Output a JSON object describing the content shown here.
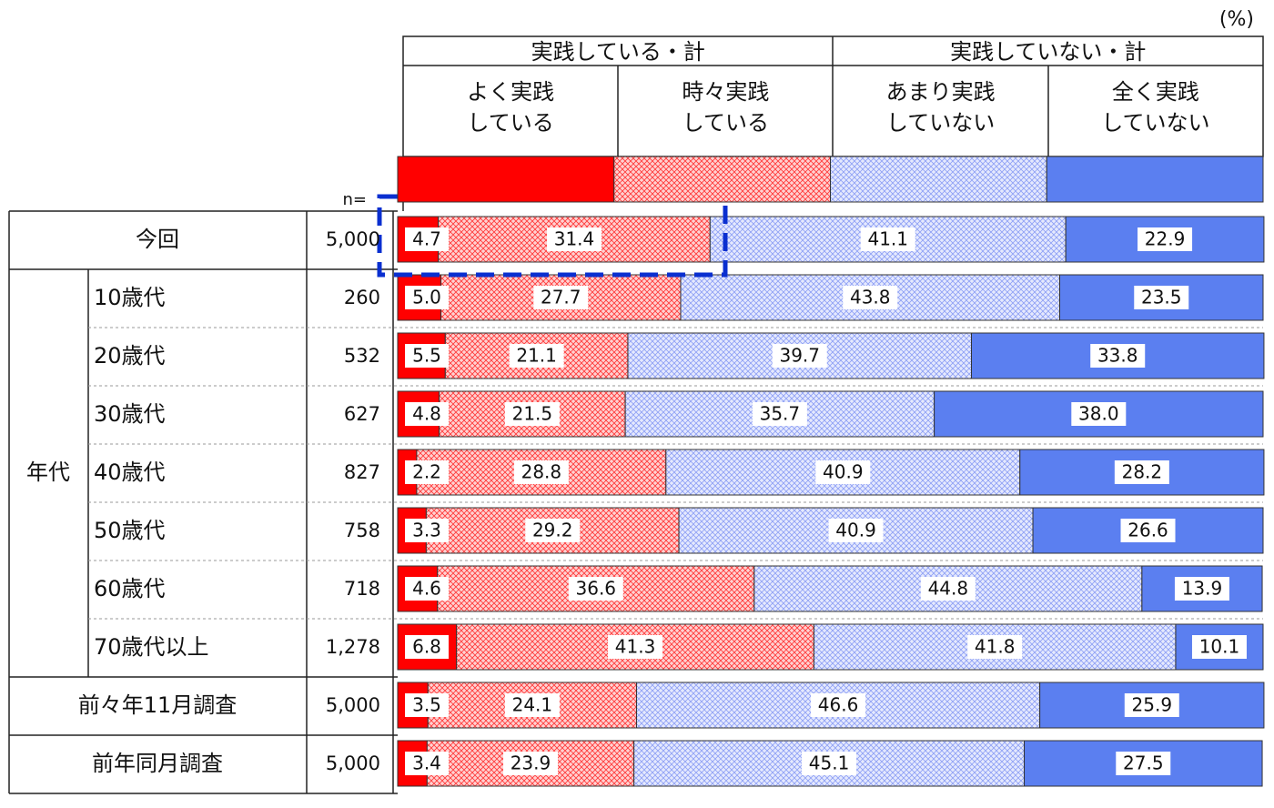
{
  "chart_data": {
    "type": "stacked-bar",
    "unit_label": "(%)",
    "group_labels": [
      "実践している・計",
      "実践していない・計"
    ],
    "n_label": "n=",
    "category_group": "年代",
    "categories": [
      "今回",
      "10歳代",
      "20歳代",
      "30歳代",
      "40歳代",
      "50歳代",
      "60歳代",
      "70歳代以上",
      "前々年11月調査",
      "前年同月調査"
    ],
    "sample_sizes": {
      "values": [
        5000,
        260,
        532,
        627,
        827,
        758,
        718,
        1278,
        5000,
        5000
      ],
      "value_labels": [
        "5,000",
        "260",
        "532",
        "627",
        "827",
        "758",
        "718",
        "1,278",
        "5,000",
        "5,000"
      ]
    },
    "xlim": [
      0,
      100
    ],
    "series": [
      {
        "name": "よく実践\nしている",
        "color": "#ff0000",
        "hatched": false,
        "values": [
          4.7,
          5.0,
          5.5,
          4.8,
          2.2,
          3.3,
          4.6,
          6.8,
          3.5,
          3.4
        ],
        "value_labels": [
          "4.7",
          "5.0",
          "5.5",
          "4.8",
          "2.2",
          "3.3",
          "4.6",
          "6.8",
          "3.5",
          "3.4"
        ]
      },
      {
        "name": "時々実践\nしている",
        "color": "#ff0000",
        "hatched": true,
        "values": [
          31.4,
          27.7,
          21.1,
          21.5,
          28.8,
          29.2,
          36.6,
          41.3,
          24.1,
          23.9
        ],
        "value_labels": [
          "31.4",
          "27.7",
          "21.1",
          "21.5",
          "28.8",
          "29.2",
          "36.6",
          "41.3",
          "24.1",
          "23.9"
        ]
      },
      {
        "name": "あまり実践\nしていない",
        "color": "#6f86f2",
        "hatched": true,
        "values": [
          41.1,
          43.8,
          39.7,
          35.7,
          40.9,
          40.9,
          44.8,
          41.8,
          46.6,
          45.1
        ],
        "value_labels": [
          "41.1",
          "43.8",
          "39.7",
          "35.7",
          "40.9",
          "40.9",
          "44.8",
          "41.8",
          "46.6",
          "45.1"
        ]
      },
      {
        "name": "全く実践\nしていない",
        "color": "#5b7ff0",
        "hatched": false,
        "values": [
          22.9,
          23.5,
          33.8,
          38.0,
          28.2,
          26.6,
          13.9,
          10.1,
          25.9,
          27.5
        ],
        "value_labels": [
          "22.9",
          "23.5",
          "33.8",
          "38.0",
          "28.2",
          "26.6",
          "13.9",
          "10.1",
          "25.9",
          "27.5"
        ]
      }
    ]
  }
}
